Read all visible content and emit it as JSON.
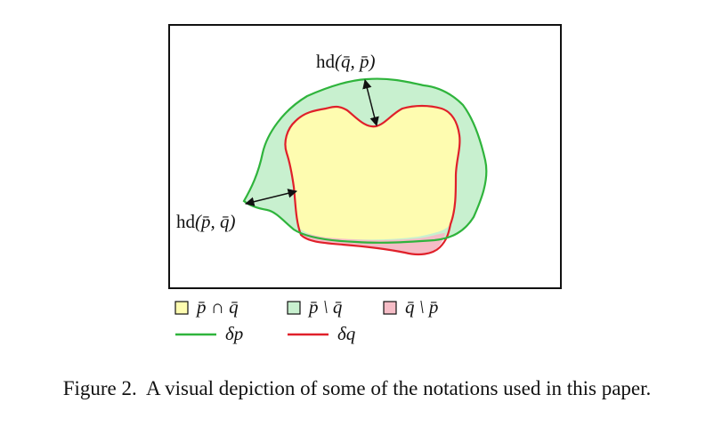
{
  "diagram": {
    "annotations": {
      "top": {
        "fn": "hd",
        "args": "(q̄, p̄)"
      },
      "left": {
        "fn": "hd",
        "args": "(p̄, q̄)"
      }
    },
    "legend": {
      "swatches": [
        {
          "label": "p̄ ∩ q̄",
          "color": "#fefcb0"
        },
        {
          "label": "p̄ \\ q̄",
          "color": "#c8f0cf"
        },
        {
          "label": "q̄ \\ p̄",
          "color": "#f5bcc6"
        }
      ],
      "lines": [
        {
          "label": "δp",
          "color": "#2fb43c"
        },
        {
          "label": "δq",
          "color": "#e0202a"
        }
      ]
    },
    "colors": {
      "outer_fill": "#c8f0cf",
      "outer_stroke": "#2fb43c",
      "inner_fill": "#fefcb0",
      "inner_stroke": "#e0202a",
      "pink_fill": "#f5bcc6",
      "frame": "#111111"
    }
  },
  "caption": {
    "label": "Figure 2.",
    "text": "A visual depiction of some of the notations used in this paper."
  }
}
